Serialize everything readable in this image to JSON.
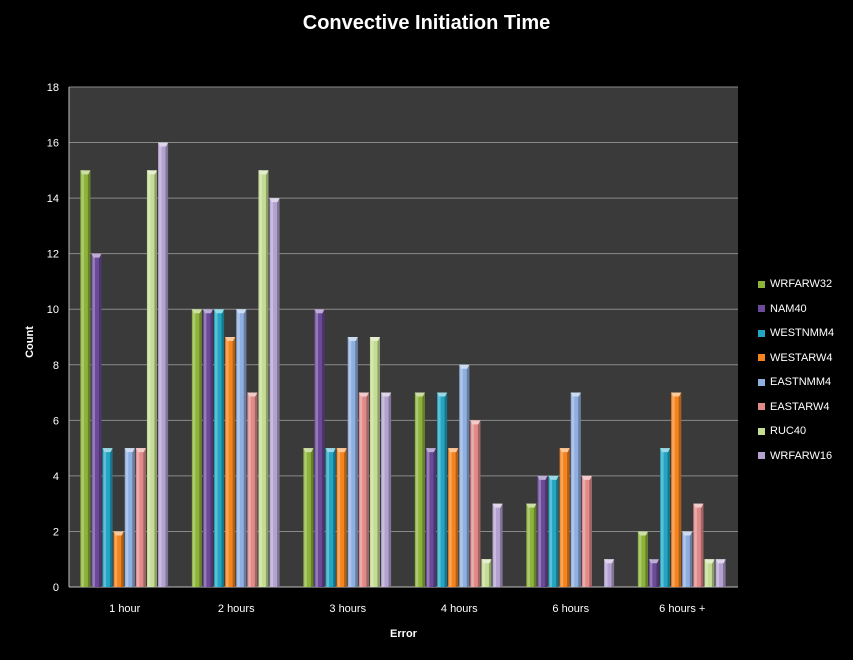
{
  "chart_data": {
    "type": "bar",
    "title": "Convective Initiation Time",
    "xlabel": "Error",
    "ylabel": "Count",
    "ylim": [
      0,
      18
    ],
    "y_ticks": [
      "0",
      "2",
      "4",
      "6",
      "8",
      "10",
      "12",
      "14",
      "16",
      "18"
    ],
    "grid": true,
    "legend_position": "right",
    "categories": [
      "1 hour",
      "2 hours",
      "3 hours",
      "4 hours",
      "6 hours",
      "6 hours +"
    ],
    "series": [
      {
        "name": "WRFARW32",
        "color": "#8db33a",
        "values": [
          15,
          10,
          5,
          7,
          3,
          2
        ]
      },
      {
        "name": "NAM40",
        "color": "#6b4a9a",
        "values": [
          12,
          10,
          10,
          5,
          4,
          1
        ]
      },
      {
        "name": "WESTNMM4",
        "color": "#23a6c4",
        "values": [
          5,
          10,
          5,
          7,
          4,
          5
        ]
      },
      {
        "name": "WESTARW4",
        "color": "#f5841f",
        "values": [
          2,
          9,
          5,
          5,
          5,
          7
        ]
      },
      {
        "name": "EASTNMM4",
        "color": "#8fafe0",
        "values": [
          5,
          10,
          9,
          8,
          7,
          2
        ]
      },
      {
        "name": "EASTARW4",
        "color": "#e08a8a",
        "values": [
          5,
          7,
          7,
          6,
          4,
          3
        ]
      },
      {
        "name": "RUC40",
        "color": "#c5dc94",
        "values": [
          15,
          15,
          9,
          1,
          0,
          1
        ]
      },
      {
        "name": "WRFARW16",
        "color": "#b3a2cf",
        "values": [
          16,
          14,
          7,
          3,
          1,
          1
        ]
      }
    ]
  }
}
